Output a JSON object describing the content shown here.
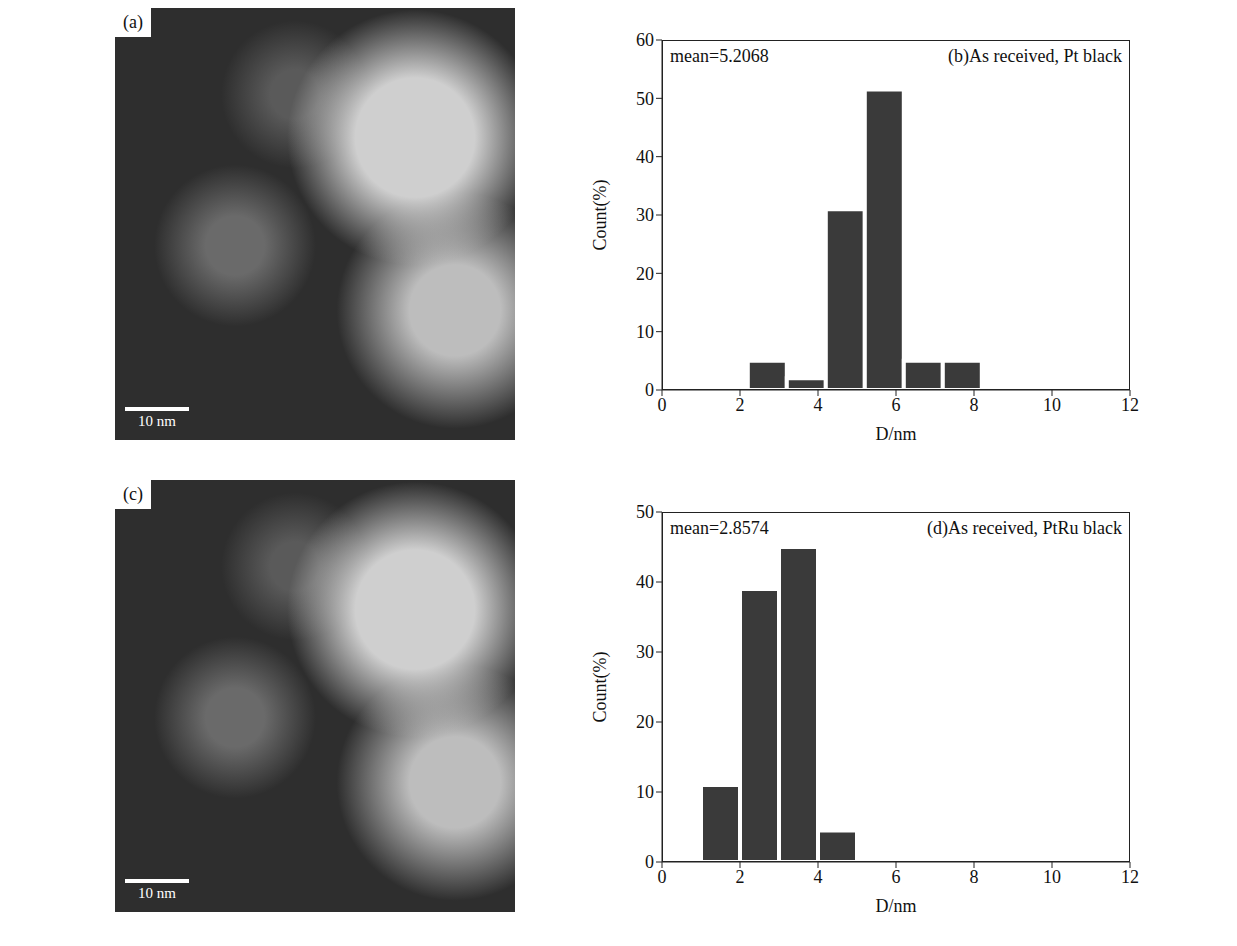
{
  "images": [
    {
      "label": "(a)",
      "scale_bar": "10 nm"
    },
    {
      "label": "(c)",
      "scale_bar": "10 nm"
    }
  ],
  "chart_data": [
    {
      "type": "histogram",
      "title": "(b)As received, Pt black",
      "annotation": "mean=5.2068",
      "bins": [
        2.2,
        3.2,
        4.2,
        5.2,
        6.2,
        7.2,
        8.2
      ],
      "values": [
        5,
        2,
        31,
        51.5,
        5,
        5
      ],
      "color": "#3a3a3a",
      "xlim": [
        0,
        12
      ],
      "xticks": [
        0,
        2,
        4,
        6,
        8,
        10,
        12
      ],
      "ylim": [
        0,
        60
      ],
      "yticks": [
        0,
        10,
        20,
        30,
        40,
        50,
        60
      ],
      "xlabel": "D/nm",
      "ylabel": "Count(%)"
    },
    {
      "type": "histogram",
      "title": "(d)As received, PtRu black",
      "annotation": "mean=2.8574",
      "bins": [
        1,
        2,
        3,
        4,
        5
      ],
      "values": [
        11,
        39,
        45,
        4.5
      ],
      "color": "#3a3a3a",
      "xlim": [
        0,
        12
      ],
      "xticks": [
        0,
        2,
        4,
        6,
        8,
        10,
        12
      ],
      "ylim": [
        0,
        50
      ],
      "yticks": [
        0,
        10,
        20,
        30,
        40,
        50
      ],
      "xlabel": "D/nm",
      "ylabel": "Count(%)"
    }
  ]
}
